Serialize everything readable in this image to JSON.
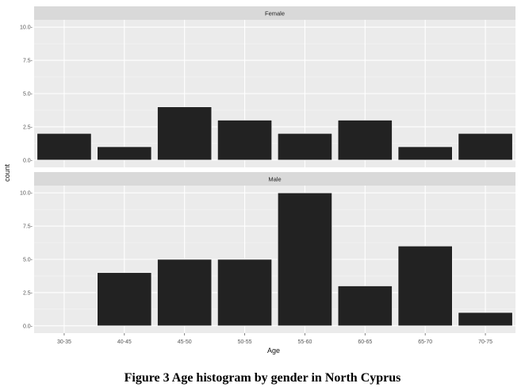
{
  "caption": "Figure 3 Age histogram by gender in North Cyprus",
  "chart_data": {
    "type": "bar",
    "xlabel": "Age",
    "ylabel": "count",
    "categories": [
      "30-35",
      "40-45",
      "45-50",
      "50-55",
      "55-60",
      "60-65",
      "65-70",
      "70-75"
    ],
    "yticks": [
      0,
      2.5,
      5,
      7.5,
      10
    ],
    "ytick_labels": [
      "0.0-",
      "2.5-",
      "5.0-",
      "7.5-",
      "10.0-"
    ],
    "ylim": [
      -0.55,
      10.55
    ],
    "facets": [
      {
        "name": "Female",
        "values": [
          2,
          1,
          4,
          3,
          2,
          3,
          1,
          2
        ]
      },
      {
        "name": "Male",
        "values": [
          0,
          4,
          5,
          5,
          10,
          3,
          6,
          1
        ]
      }
    ],
    "grid": true,
    "colors": {
      "panel_bg": "#ebebeb",
      "strip_bg": "#d9d9d9",
      "grid_major": "#ffffff",
      "grid_minor": "#f5f5f5",
      "bar_fill": "#222222"
    }
  }
}
